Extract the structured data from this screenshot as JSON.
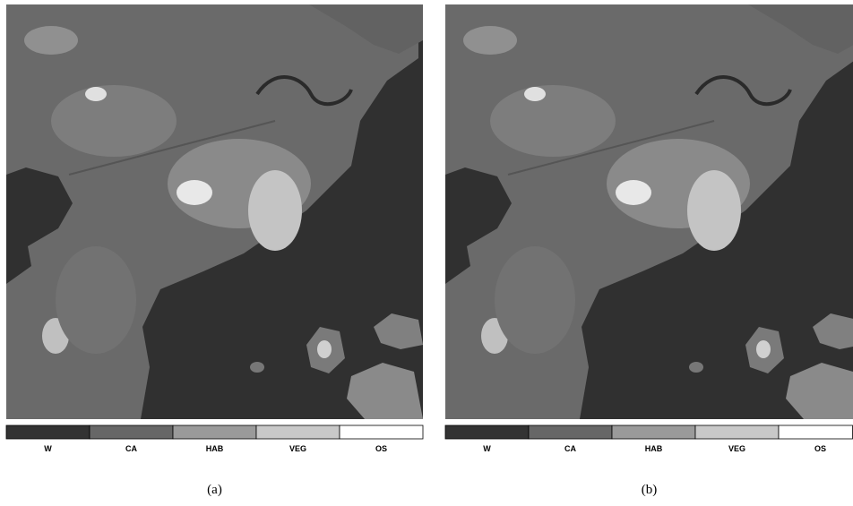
{
  "panels": [
    {
      "caption": "(a)",
      "legend": [
        {
          "label": "W",
          "color": "#333333"
        },
        {
          "label": "CA",
          "color": "#676767"
        },
        {
          "label": "HAB",
          "color": "#9a9a9a"
        },
        {
          "label": "VEG",
          "color": "#c8c8c8"
        },
        {
          "label": "OS",
          "color": "#ffffff"
        }
      ]
    },
    {
      "caption": "(b)",
      "legend": [
        {
          "label": "W",
          "color": "#333333"
        },
        {
          "label": "CA",
          "color": "#676767"
        },
        {
          "label": "HAB",
          "color": "#9a9a9a"
        },
        {
          "label": "VEG",
          "color": "#c8c8c8"
        },
        {
          "label": "OS",
          "color": "#ffffff"
        }
      ]
    }
  ]
}
